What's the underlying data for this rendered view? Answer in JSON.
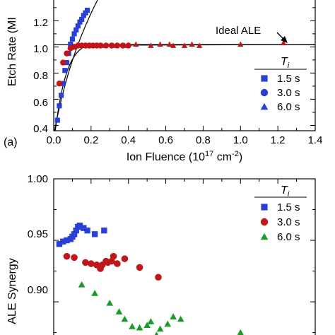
{
  "chart_data": [
    {
      "type": "scatter",
      "panel_label": "(a)",
      "xlabel_main": "Ion Fluence (10",
      "xlabel_exp": "17",
      "xlabel_mid": " cm",
      "xlabel_exp2": "-2",
      "xlabel_end": ")",
      "ylabel": "Etch Rate (MI",
      "xlim": [
        0,
        1.4
      ],
      "ylim": [
        0.37,
        1.38
      ],
      "xticks": [
        "0.0",
        "0.2",
        "0.4",
        "0.6",
        "0.8",
        "1.0",
        "1.2",
        "1.4"
      ],
      "yticks": [
        "0.4",
        "0.6",
        "0.8",
        "1.0",
        "1.2"
      ],
      "annotation": "Ideal ALE",
      "annotation_point": [
        1.23,
        1.03
      ],
      "legend_title": "T",
      "legend_title_sub": "i",
      "legend_location": "lower-right",
      "reference_line": 1.0,
      "series": [
        {
          "name": "1.5 s",
          "marker": "square",
          "color": "#2a3fd6",
          "x": [
            0.02,
            0.03,
            0.04,
            0.05,
            0.06,
            0.07,
            0.08,
            0.09,
            0.1,
            0.11,
            0.12,
            0.13,
            0.14,
            0.15,
            0.16,
            0.17,
            0.18
          ],
          "y": [
            0.44,
            0.55,
            0.63,
            0.72,
            0.82,
            0.88,
            0.95,
            1.02,
            1.06,
            1.1,
            1.13,
            1.16,
            1.19,
            1.21,
            1.24,
            1.26,
            1.28
          ]
        },
        {
          "name": "3.0 s",
          "marker": "circle",
          "color": "#c0151a",
          "x": [
            0.03,
            0.05,
            0.07,
            0.09,
            0.11,
            0.13,
            0.15,
            0.17,
            0.19,
            0.21,
            0.23,
            0.25,
            0.28,
            0.31,
            0.34,
            0.37,
            0.4
          ],
          "y": [
            0.72,
            0.88,
            0.95,
            0.99,
            1.0,
            1.01,
            1.01,
            1.01,
            1.01,
            1.01,
            1.01,
            1.01,
            1.01,
            1.01,
            1.01,
            1.01,
            1.01
          ]
        },
        {
          "name": "6.0 s",
          "marker": "triangle",
          "color": "#c0151a",
          "x": [
            0.1,
            0.15,
            0.2,
            0.26,
            0.32,
            0.38,
            0.44,
            0.52,
            0.57,
            0.62,
            0.64,
            0.7,
            0.74,
            0.78,
            1.0,
            1.23
          ],
          "y": [
            1.0,
            1.01,
            1.01,
            1.01,
            1.01,
            1.01,
            1.02,
            1.01,
            1.02,
            1.02,
            1.01,
            1.01,
            1.02,
            1.01,
            1.02,
            1.03
          ]
        }
      ]
    },
    {
      "type": "scatter",
      "ylabel": "ALE Synergy",
      "ylim": [
        0.865,
        1.0
      ],
      "yticks": [
        "0.90",
        "0.95",
        "1.00"
      ],
      "legend_title": "T",
      "legend_title_sub": "i",
      "legend_location": "top-right",
      "series": [
        {
          "name": "1.5 s",
          "marker": "square",
          "color": "#2a3fd6",
          "x": [
            0.03,
            0.05,
            0.07,
            0.09,
            0.1,
            0.11,
            0.12,
            0.13,
            0.14,
            0.16,
            0.18,
            0.22,
            0.27
          ],
          "y": [
            0.947,
            0.949,
            0.95,
            0.951,
            0.953,
            0.955,
            0.958,
            0.961,
            0.962,
            0.96,
            0.958,
            0.955,
            0.958
          ]
        },
        {
          "name": "3.0 s",
          "marker": "circle",
          "color": "#c0151a",
          "x": [
            0.07,
            0.11,
            0.17,
            0.2,
            0.23,
            0.25,
            0.26,
            0.28,
            0.29,
            0.31,
            0.32,
            0.34,
            0.38,
            0.46,
            0.56
          ],
          "y": [
            0.937,
            0.936,
            0.932,
            0.931,
            0.93,
            0.927,
            0.93,
            0.933,
            0.932,
            0.933,
            0.937,
            0.931,
            0.935,
            0.928,
            0.92
          ]
        },
        {
          "name": "6.0 s",
          "marker": "triangle",
          "color": "#1a9a2a",
          "x": [
            0.15,
            0.22,
            0.3,
            0.35,
            0.38,
            0.42,
            0.46,
            0.5,
            0.52,
            0.55,
            0.57,
            0.61,
            0.64,
            0.68,
            1.0
          ],
          "y": [
            0.914,
            0.907,
            0.899,
            0.892,
            0.886,
            0.88,
            0.879,
            0.881,
            0.884,
            0.873,
            0.878,
            0.882,
            0.888,
            0.886,
            0.875
          ]
        }
      ]
    }
  ]
}
